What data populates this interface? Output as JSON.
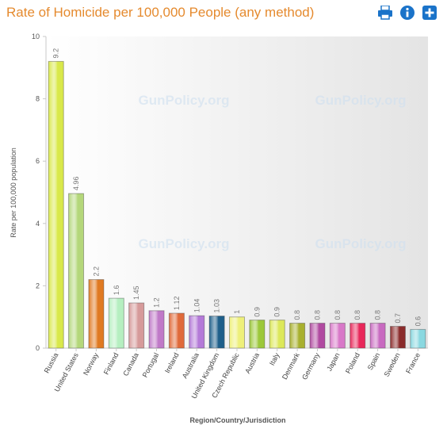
{
  "header": {
    "title": "Rate of Homicide per 100,000 People (any method)",
    "icons": [
      "print-icon",
      "info-icon",
      "add-icon"
    ]
  },
  "watermark": "GunPolicy.org",
  "colors": {
    "title": "#e58a2e",
    "toolbar": "#1a73c9"
  },
  "chart_data": {
    "type": "bar",
    "title": "Rate of Homicide per 100,000 People (any method)",
    "xlabel": "Region/Country/Jurisdiction",
    "ylabel": "Rate per 100,000 population",
    "ylim": [
      0,
      10
    ],
    "yticks": [
      "0",
      "2",
      "4",
      "6",
      "8",
      "10"
    ],
    "grid": false,
    "categories": [
      "Russia",
      "United States",
      "Norway",
      "Finland",
      "Canada",
      "Portugal",
      "Ireland",
      "Australia",
      "United Kingdom",
      "Czech Republic",
      "Austria",
      "Italy",
      "Denmark",
      "Germany",
      "Japan",
      "Poland",
      "Spain",
      "Sweden",
      "France"
    ],
    "values": [
      9.2,
      4.96,
      2.2,
      1.6,
      1.45,
      1.2,
      1.12,
      1.04,
      1.03,
      1,
      0.9,
      0.9,
      0.8,
      0.8,
      0.8,
      0.8,
      0.8,
      0.7,
      0.6
    ],
    "value_labels": [
      "9.2",
      "4.96",
      "2.2",
      "1.6",
      "1.45",
      "1.2",
      "1.12",
      "1.04",
      "1.03",
      "1",
      "0.9",
      "0.9",
      "0.8",
      "0.8",
      "0.8",
      "0.8",
      "0.8",
      "0.7",
      "0.6"
    ],
    "bar_colors": [
      "#d9e84a",
      "#b4d77a",
      "#e07a22",
      "#b5efc0",
      "#d69a9a",
      "#c07ac8",
      "#e06a3a",
      "#b47ad8",
      "#1e5f8a",
      "#eef07a",
      "#9cc83a",
      "#dce85a",
      "#a8b02e",
      "#b04aa0",
      "#d878c8",
      "#e8285a",
      "#c86ac0",
      "#8a2a2a",
      "#8ad8e0"
    ]
  }
}
